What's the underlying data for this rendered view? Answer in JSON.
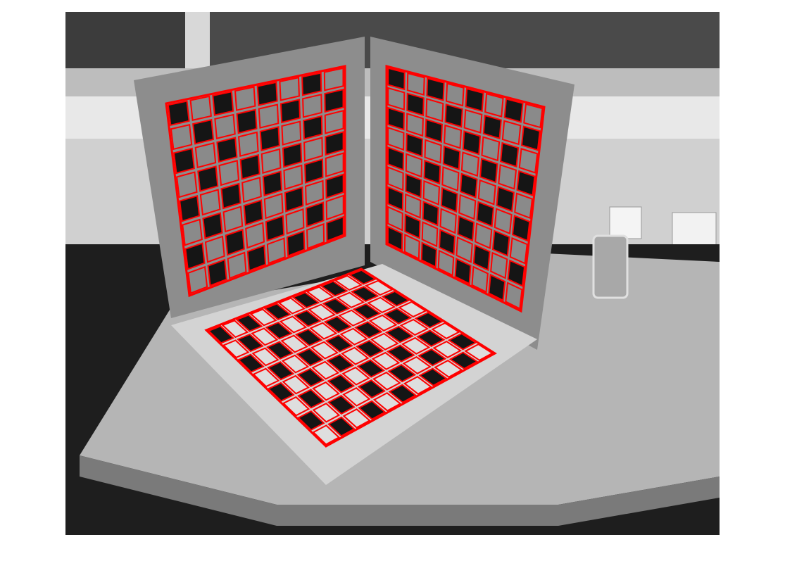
{
  "figure": {
    "background": "#ffffff",
    "image": {
      "description_name": "grayscale-photo-of-three-plane-checkerboard-calibration-target",
      "colormap": "gray"
    },
    "overlay": {
      "color": "#ff0000",
      "boards": [
        {
          "name": "left-wall-board",
          "grid_cols": 8,
          "grid_rows": 8
        },
        {
          "name": "right-wall-board",
          "grid_cols": 8,
          "grid_rows": 9
        },
        {
          "name": "floor-board",
          "grid_cols": 11,
          "grid_rows": 8
        }
      ]
    }
  }
}
